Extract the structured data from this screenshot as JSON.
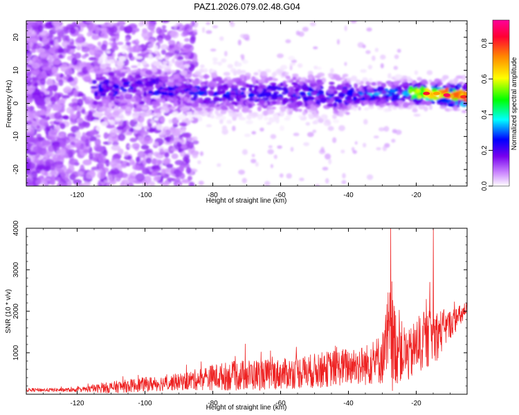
{
  "title": "PAZ1.2026.079.02.48.G04",
  "colors": {
    "snr_line": "#ee2222",
    "colorbar": [
      "#ffffff",
      "#cc88ff",
      "#7700ee",
      "#0000ff",
      "#00ffff",
      "#00ff00",
      "#ffff00",
      "#ff8800",
      "#ff0033",
      "#ff0099"
    ]
  },
  "chart_data": [
    {
      "type": "heatmap",
      "name": "spectrogram",
      "title": "PAZ1.2026.079.02.48.G04",
      "xlabel": "Height of straight line (km)",
      "ylabel": "Frequency (Hz)",
      "xlim": [
        -135,
        -5
      ],
      "ylim": [
        -25,
        25
      ],
      "xticks": [
        -120,
        -100,
        -80,
        -60,
        -40,
        -20
      ],
      "xtick_labels": [
        "-120",
        "-100",
        "-80",
        "-60",
        "-40",
        "-20"
      ],
      "yticks": [
        -20,
        -10,
        0,
        10,
        20
      ],
      "ytick_labels": [
        "-20",
        "-10",
        "0",
        "10",
        "20"
      ],
      "ridge": {
        "x": [
          -135,
          -110,
          -95,
          -80,
          -60,
          -40,
          -25,
          -15,
          -5
        ],
        "center_hz": [
          3,
          4.5,
          4,
          3,
          3,
          2.5,
          3,
          3,
          2
        ],
        "peak_amplitude": [
          0.2,
          0.3,
          0.3,
          0.3,
          0.3,
          0.35,
          0.45,
          0.7,
          0.8
        ]
      },
      "colorbar": {
        "label": "Normalized spectral amplitude",
        "range": [
          0,
          0.93
        ],
        "ticks": [
          0.0,
          0.2,
          0.4,
          0.6,
          0.8
        ],
        "tick_labels": [
          "0.0",
          "0.2",
          "0.4",
          "0.6",
          "0.8"
        ]
      }
    },
    {
      "type": "line",
      "name": "snr",
      "xlabel": "Height of straight line (km)",
      "ylabel": "SNR (10 * v/v)",
      "xlim": [
        -135,
        -5
      ],
      "ylim": [
        0,
        4000
      ],
      "xticks": [
        -120,
        -100,
        -80,
        -60,
        -40,
        -20
      ],
      "xtick_labels": [
        "-120",
        "-100",
        "-80",
        "-60",
        "-40",
        "-20"
      ],
      "yticks": [
        1000,
        2000,
        3000,
        4000
      ],
      "ytick_labels": [
        "1000",
        "2000",
        "3000",
        "4000"
      ],
      "series": [
        {
          "name": "SNR",
          "envelope_x": [
            -135,
            -120,
            -110,
            -100,
            -90,
            -80,
            -70,
            -60,
            -50,
            -40,
            -35,
            -30,
            -28,
            -25,
            -22,
            -20,
            -15,
            -10,
            -5
          ],
          "envelope_mean": [
            100,
            100,
            150,
            220,
            270,
            380,
            420,
            450,
            520,
            630,
            650,
            800,
            1200,
            1000,
            850,
            1100,
            1300,
            1650,
            2000
          ],
          "envelope_spread": [
            60,
            70,
            200,
            250,
            280,
            450,
            550,
            520,
            600,
            650,
            700,
            900,
            2000,
            1100,
            900,
            1000,
            1000,
            500,
            300
          ],
          "peaks": [
            {
              "x": -27.5,
              "y": 4000
            },
            {
              "x": -15,
              "y": 4000
            },
            {
              "x": -16,
              "y": 2700
            }
          ]
        }
      ]
    }
  ]
}
